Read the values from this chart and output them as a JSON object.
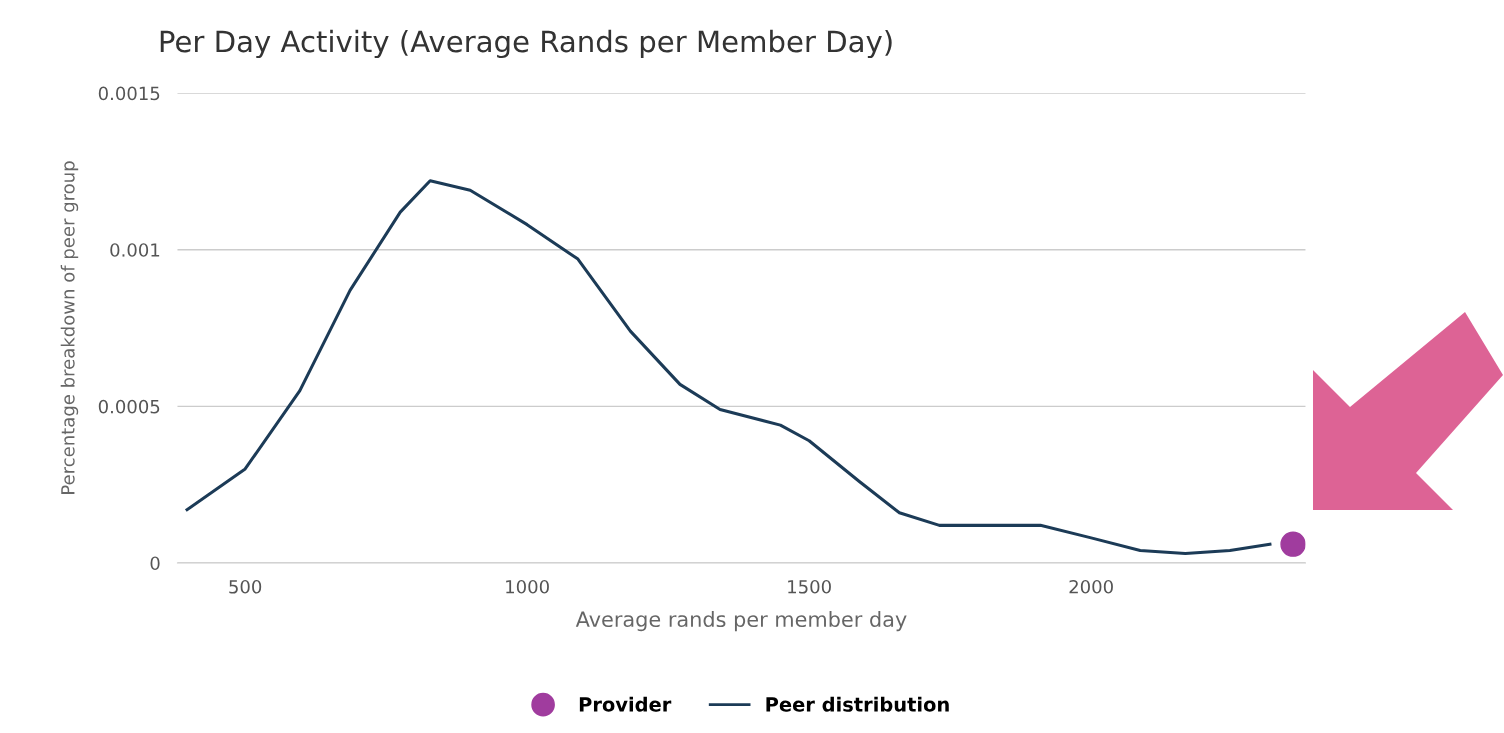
{
  "chart_data": {
    "type": "line",
    "title": "Per Day Activity (Average Rands per Member Day)",
    "xlabel": "Average rands per member day",
    "ylabel": "Percentage breakdown of peer group",
    "series": [
      {
        "name": "Provider",
        "type": "scatter",
        "color": "#a03c9e",
        "x": [
          2358
        ],
        "values": [
          6e-05
        ]
      },
      {
        "name": "Peer distribution",
        "color": "#1c3b57",
        "x": [
          397,
          500,
          597,
          686,
          775,
          828,
          899,
          1000,
          1090,
          1183,
          1271,
          1342,
          1449,
          1500,
          1589,
          1660,
          1731,
          1820,
          1910,
          2000,
          2087,
          2167,
          2246,
          2317
        ],
        "values": [
          0.00017,
          0.0003,
          0.00055,
          0.00087,
          0.00112,
          0.00122,
          0.00119,
          0.00108,
          0.00097,
          0.00074,
          0.00057,
          0.00049,
          0.00044,
          0.00039,
          0.00026,
          0.00016,
          0.00012,
          0.00012,
          0.00012,
          8e-05,
          4e-05,
          3e-05,
          4e-05,
          6e-05
        ]
      }
    ],
    "xlim": [
      380,
      2380
    ],
    "xticks": [
      500,
      1000,
      1500,
      2000
    ],
    "ylim": [
      0,
      0.0015
    ],
    "yticks": [
      0,
      0.0005,
      0.001,
      0.0015
    ],
    "grid": "y",
    "legend": "bottom"
  }
}
